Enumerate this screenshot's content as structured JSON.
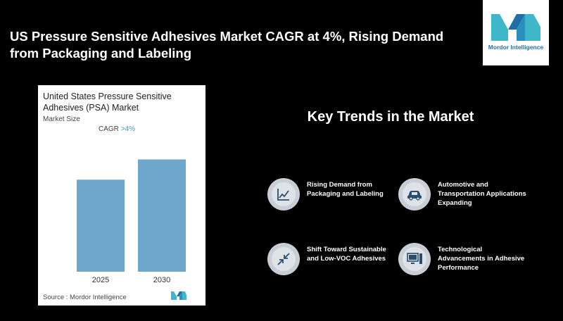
{
  "headline": "US Pressure Sensitive Adhesives Market CAGR at 4%, Rising Demand from Packaging and Labeling",
  "logo": {
    "text": "Mordor Intelligence",
    "color": "#1f6fa5"
  },
  "chart": {
    "title": "United States Pressure Sensitive Adhesives (PSA) Market",
    "subtitle": "Market Size",
    "cagr_label": "CAGR",
    "cagr_value": ">4%",
    "source": "Source :  Mordor Intelligence"
  },
  "chart_data": {
    "type": "bar",
    "title": "United States Pressure Sensitive Adhesives (PSA) Market",
    "categories": [
      "2025",
      "2030"
    ],
    "values": [
      1.0,
      1.22
    ],
    "ylabel": "",
    "xlabel": "",
    "ylim": [
      0,
      1.3
    ],
    "grid": false,
    "bar_color": "#6ea7cc"
  },
  "trends": {
    "title": "Key Trends in the Market",
    "items": [
      {
        "label": "Rising Demand from Packaging and Labeling",
        "icon": "line-chart-icon"
      },
      {
        "label": "Automotive and Transportation Applications Expanding",
        "icon": "car-icon"
      },
      {
        "label": "Shift Toward Sustainable and Low-VOC Adhesives",
        "icon": "compress-arrows-icon"
      },
      {
        "label": "Technological Advancements in Adhesive Performance",
        "icon": "computer-icon"
      }
    ]
  }
}
